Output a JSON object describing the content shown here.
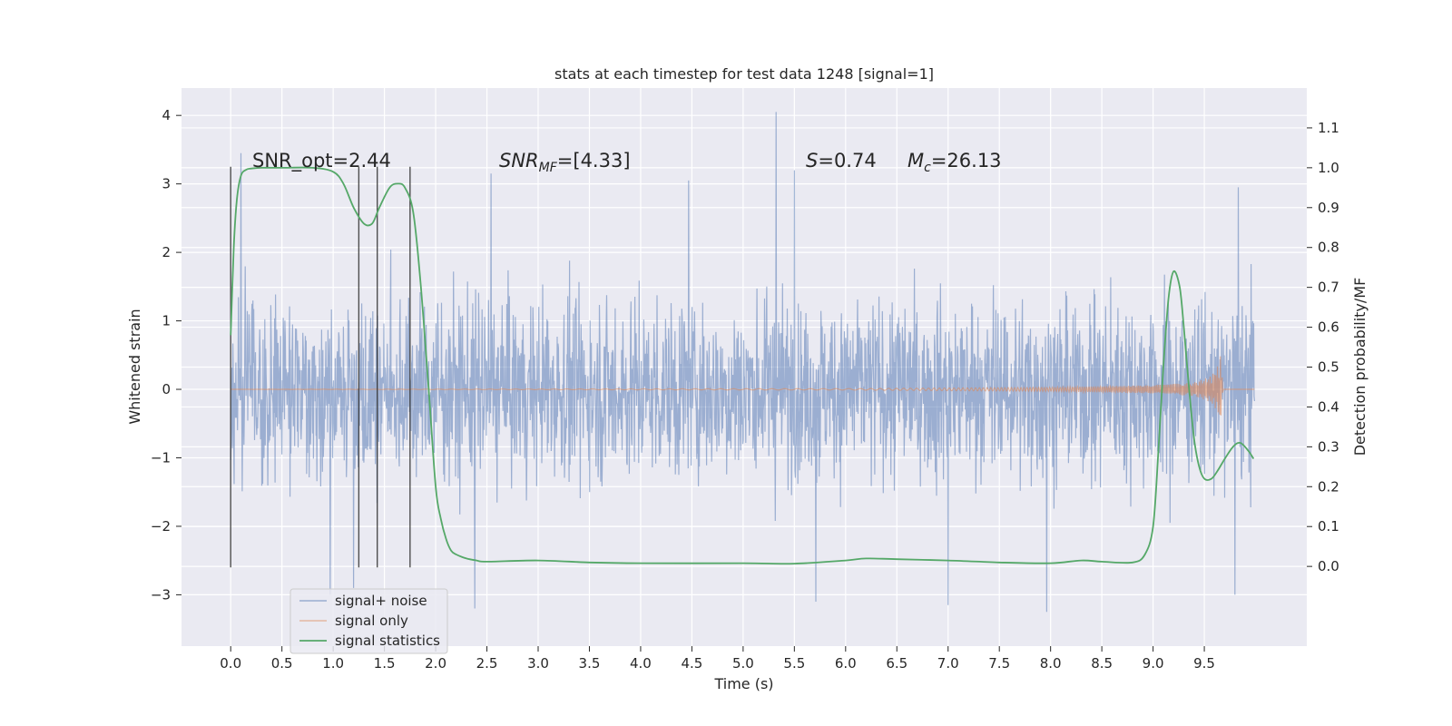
{
  "chart_data": {
    "type": "line",
    "title": "stats at each timestep for test data 1248 [signal=1]",
    "xlabel": "Time (s)",
    "ylabel": "Whitened strain",
    "ylabel_right": "Detection probability/MF",
    "xlim": [
      -0.48,
      10.5
    ],
    "ylim": [
      -3.75,
      4.4
    ],
    "ylim_right": [
      -0.2,
      1.2
    ],
    "x_ticks": [
      "0.0",
      "0.5",
      "1.0",
      "1.5",
      "2.0",
      "2.5",
      "3.0",
      "3.5",
      "4.0",
      "4.5",
      "5.0",
      "5.5",
      "6.0",
      "6.5",
      "7.0",
      "7.5",
      "8.0",
      "8.5",
      "9.0",
      "9.5"
    ],
    "y_ticks": [
      "−3",
      "−2",
      "−1",
      "0",
      "1",
      "2",
      "3",
      "4"
    ],
    "y_right_ticks": [
      "0.0",
      "0.1",
      "0.2",
      "0.3",
      "0.4",
      "0.5",
      "0.6",
      "0.7",
      "0.8",
      "0.9",
      "1.0",
      "1.1"
    ],
    "grid": true,
    "legend_placement": "lower-left",
    "annotations": {
      "snr_opt": "SNR_opt=2.44",
      "snr_mf": "=[4.33]",
      "snr_mf_symbol": "SNR",
      "snr_mf_sub": "MF",
      "s_symbol": "S",
      "s_value": "=0.74",
      "mc_symbol": "M",
      "mc_sub": "c",
      "mc_value": "=26.13"
    },
    "vertical_markers_x": [
      0.0,
      1.25,
      1.43,
      1.75
    ],
    "series": [
      {
        "name": "signal+ noise",
        "color": "#4c72b0",
        "x_range": [
          0.0,
          9.99
        ],
        "typical_range": [
          -1.5,
          1.5
        ],
        "extremes": [
          {
            "x": 0.1,
            "y": 3.45
          },
          {
            "x": 0.97,
            "y": -3.0
          },
          {
            "x": 1.2,
            "y": -2.9
          },
          {
            "x": 2.38,
            "y": -3.2
          },
          {
            "x": 2.54,
            "y": 3.15
          },
          {
            "x": 4.47,
            "y": 3.05
          },
          {
            "x": 5.32,
            "y": 4.05
          },
          {
            "x": 5.5,
            "y": 3.2
          },
          {
            "x": 5.71,
            "y": -3.1
          },
          {
            "x": 7.0,
            "y": -3.15
          },
          {
            "x": 7.96,
            "y": -3.25
          },
          {
            "x": 9.8,
            "y": -3.0
          },
          {
            "x": 9.83,
            "y": 2.95
          }
        ]
      },
      {
        "name": "signal only",
        "color": "#dd8452",
        "envelope": [
          {
            "x": 0.0,
            "a": 0.0
          },
          {
            "x": 6.0,
            "a": 0.01
          },
          {
            "x": 8.0,
            "a": 0.03
          },
          {
            "x": 9.0,
            "a": 0.06
          },
          {
            "x": 9.4,
            "a": 0.1
          },
          {
            "x": 9.55,
            "a": 0.18
          },
          {
            "x": 9.62,
            "a": 0.3
          },
          {
            "x": 9.67,
            "a": 0.55
          },
          {
            "x": 9.68,
            "a": 0.0
          }
        ]
      },
      {
        "name": "signal statistics",
        "color": "#55a868",
        "x": [
          0.0,
          0.03,
          0.06,
          0.1,
          0.15,
          0.2,
          0.3,
          0.5,
          0.8,
          1.0,
          1.1,
          1.2,
          1.3,
          1.38,
          1.45,
          1.55,
          1.63,
          1.7,
          1.78,
          1.85,
          1.93,
          2.0,
          2.05,
          2.1,
          2.15,
          2.2,
          2.3,
          2.4,
          2.5,
          3.0,
          3.5,
          4.0,
          5.0,
          5.5,
          6.0,
          6.2,
          6.5,
          7.0,
          7.5,
          8.0,
          8.3,
          8.5,
          8.8,
          8.92,
          9.0,
          9.05,
          9.1,
          9.15,
          9.2,
          9.26,
          9.3,
          9.35,
          9.4,
          9.45,
          9.5,
          9.57,
          9.63,
          9.7,
          9.78,
          9.85,
          9.93,
          9.98
        ],
        "y": [
          0.58,
          0.8,
          0.92,
          0.98,
          0.995,
          0.998,
          1.0,
          1.0,
          1.0,
          0.99,
          0.96,
          0.9,
          0.86,
          0.86,
          0.9,
          0.95,
          0.96,
          0.95,
          0.89,
          0.72,
          0.45,
          0.2,
          0.12,
          0.07,
          0.04,
          0.03,
          0.02,
          0.015,
          0.012,
          0.015,
          0.01,
          0.008,
          0.008,
          0.007,
          0.015,
          0.02,
          0.018,
          0.015,
          0.01,
          0.008,
          0.015,
          0.012,
          0.01,
          0.03,
          0.1,
          0.28,
          0.5,
          0.67,
          0.74,
          0.7,
          0.6,
          0.45,
          0.32,
          0.25,
          0.22,
          0.22,
          0.24,
          0.27,
          0.3,
          0.31,
          0.29,
          0.27
        ]
      }
    ]
  }
}
